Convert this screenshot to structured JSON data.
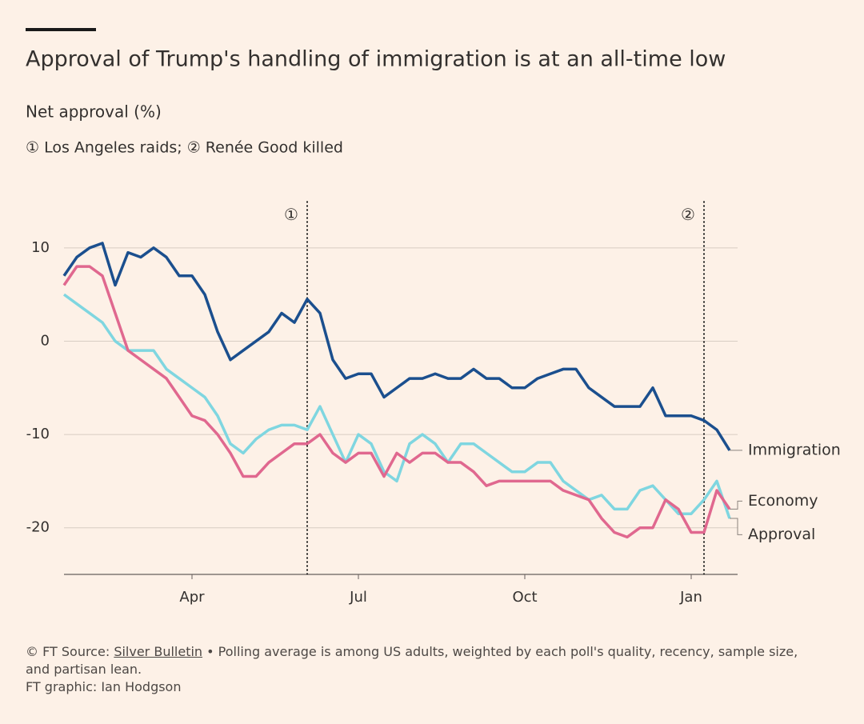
{
  "chart_data": {
    "type": "line",
    "title": "Approval of Trump's handling of immigration is at an all-time low",
    "subtitle": "Net approval (%)",
    "annotation_note": "① Los Angeles raids; ② Renée Good killed",
    "annotations": [
      {
        "label": "①",
        "at": 19
      },
      {
        "label": "②",
        "at": 50
      }
    ],
    "categories": [
      null,
      null,
      null,
      null,
      null,
      null,
      null,
      null,
      null,
      null,
      "Apr",
      null,
      null,
      null,
      null,
      null,
      null,
      null,
      null,
      null,
      null,
      null,
      null,
      "Jul",
      null,
      null,
      null,
      null,
      null,
      null,
      null,
      null,
      null,
      null,
      null,
      null,
      "Oct",
      null,
      null,
      null,
      null,
      null,
      null,
      null,
      null,
      null,
      null,
      null,
      null,
      "Jan",
      null,
      null,
      null
    ],
    "series": [
      {
        "name": "Immigration",
        "color": "#1b4f8e",
        "values": [
          7,
          9,
          10,
          10.5,
          6,
          9.5,
          9,
          10,
          9,
          7,
          7,
          5,
          1,
          -2,
          -1,
          0,
          1,
          3,
          2,
          4.5,
          3,
          -2,
          -4,
          -3.5,
          -3.5,
          -6,
          -5,
          -4,
          -4,
          -3.5,
          -4,
          -4,
          -3,
          -4,
          -4,
          -5,
          -5,
          -4,
          -3.5,
          -3,
          -3,
          -5,
          -6,
          -7,
          -7,
          -7,
          -5,
          -8,
          -8,
          -8,
          -8.5,
          -9.5,
          -11.7
        ]
      },
      {
        "name": "Economy",
        "color": "#e0688f",
        "values": [
          6,
          8,
          8,
          7,
          3,
          -1,
          -2,
          -3,
          -4,
          -6,
          -8,
          -8.5,
          -10,
          -12,
          -14.5,
          -14.5,
          -13,
          -12,
          -11,
          -11,
          -10,
          -12,
          -13,
          -12,
          -12,
          -14.5,
          -12,
          -13,
          -12,
          -12,
          -13,
          -13,
          -14,
          -15.5,
          -15,
          -15,
          -15,
          -15,
          -15,
          -16,
          -16.5,
          -17,
          -19,
          -20.5,
          -21,
          -20,
          -20,
          -17,
          -18,
          -20.5,
          -20.5,
          -16,
          -18
        ]
      },
      {
        "name": "Approval",
        "color": "#7fd6e0",
        "values": [
          5,
          4,
          3,
          2,
          0,
          -1,
          -1,
          -1,
          -3,
          -4,
          -5,
          -6,
          -8,
          -11,
          -12,
          -10.5,
          -9.5,
          -9,
          -9,
          -9.5,
          -7,
          -10,
          -13,
          -10,
          -11,
          -14,
          -15,
          -11,
          -10,
          -11,
          -13,
          -11,
          -11,
          -12,
          -13,
          -14,
          -14,
          -13,
          -13,
          -15,
          -16,
          -17,
          -16.5,
          -18,
          -18,
          -16,
          -15.5,
          -17,
          -18.5,
          -18.5,
          -17,
          -15,
          -19
        ]
      }
    ],
    "ylim": [
      -25,
      15
    ],
    "yticks": [
      -20,
      -10,
      0,
      10
    ],
    "grid": true,
    "source_prefix": "© FT Source:",
    "source_link": "Silver Bulletin",
    "source_note": "• Polling average is among US adults, weighted by each poll's quality, recency, sample size, and partisan lean.",
    "credit": "FT graphic: Ian Hodgson"
  }
}
